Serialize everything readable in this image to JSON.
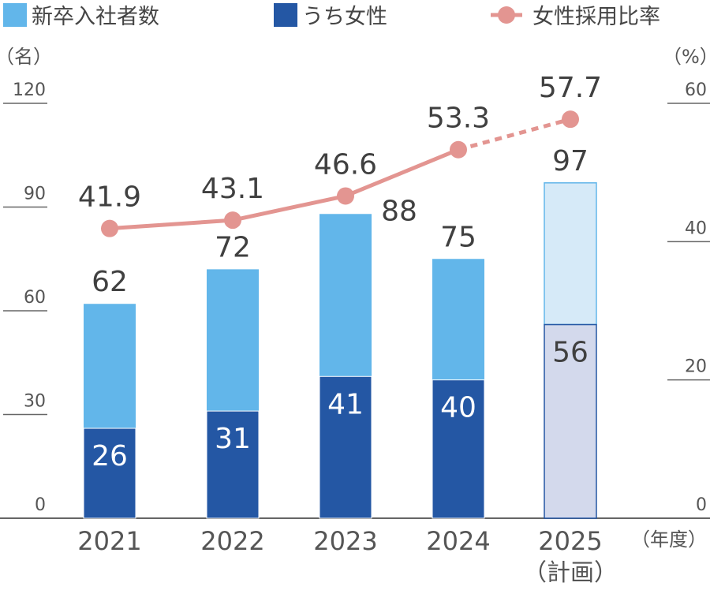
{
  "chart_data": {
    "type": "bar",
    "categories": [
      "2021",
      "2022",
      "2023",
      "2024",
      "2025"
    ],
    "category_notes": [
      "",
      "",
      "",
      "",
      "（計画）"
    ],
    "series": [
      {
        "name": "新卒入社者数",
        "type": "bar",
        "axis": "left",
        "values": [
          62,
          72,
          88,
          75,
          97
        ],
        "color": "#62b6ea",
        "planned_color": "#d6eaf8"
      },
      {
        "name": "うち女性",
        "type": "bar",
        "axis": "left",
        "values": [
          26,
          31,
          41,
          40,
          56
        ],
        "color": "#2457a4",
        "planned_color": "#d3d9ec"
      },
      {
        "name": "女性採用比率",
        "type": "line",
        "axis": "right",
        "values": [
          41.9,
          43.1,
          46.6,
          53.3,
          57.7
        ],
        "color": "#e39591",
        "last_segment_dashed": true
      }
    ],
    "left_axis": {
      "unit": "（名）",
      "ylim": [
        0,
        120
      ],
      "ticks": [
        "0",
        "30",
        "60",
        "90",
        "120"
      ]
    },
    "right_axis": {
      "unit": "（%）",
      "ylim": [
        0,
        60
      ],
      "ticks": [
        "0",
        "20",
        "40",
        "60"
      ]
    },
    "xlabel": "（年度）",
    "legend": "top",
    "grid": false
  }
}
